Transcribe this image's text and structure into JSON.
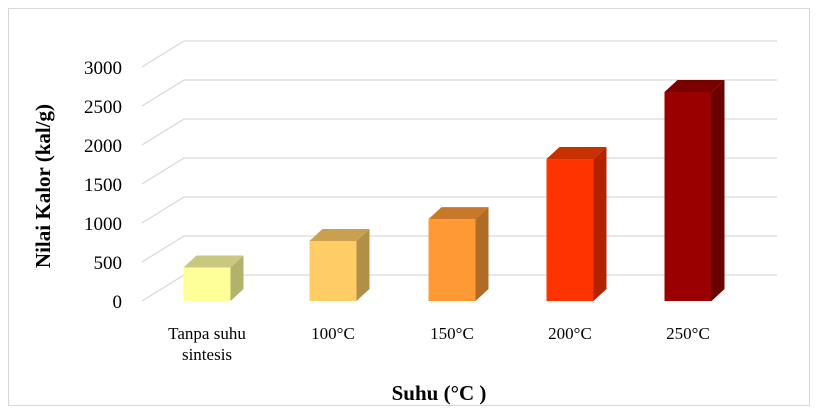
{
  "chart_data": {
    "type": "bar",
    "style": "3d-column",
    "categories": [
      "Tanpa suhu\nsintesis",
      "100°C",
      "150°C",
      "200°C",
      "250°C"
    ],
    "values": [
      430,
      770,
      1050,
      1820,
      2680
    ],
    "colors": {
      "front": [
        "#ffff99",
        "#ffcc66",
        "#ff9933",
        "#ff3300",
        "#990000"
      ],
      "side": [
        "#b2b26b",
        "#b28f47",
        "#b26b24",
        "#b22400",
        "#6b0000"
      ],
      "top": [
        "#c8c880",
        "#c8a050",
        "#c87828",
        "#c83000",
        "#7a0000"
      ]
    },
    "xlabel": "Suhu (°C )",
    "ylabel": "Nilai Kalor (kal/g)",
    "ylim": [
      0,
      3000
    ],
    "yticks": [
      0,
      500,
      1000,
      1500,
      2000,
      2500,
      3000
    ],
    "grid": true,
    "gridline_color": "#d9d9d9"
  }
}
